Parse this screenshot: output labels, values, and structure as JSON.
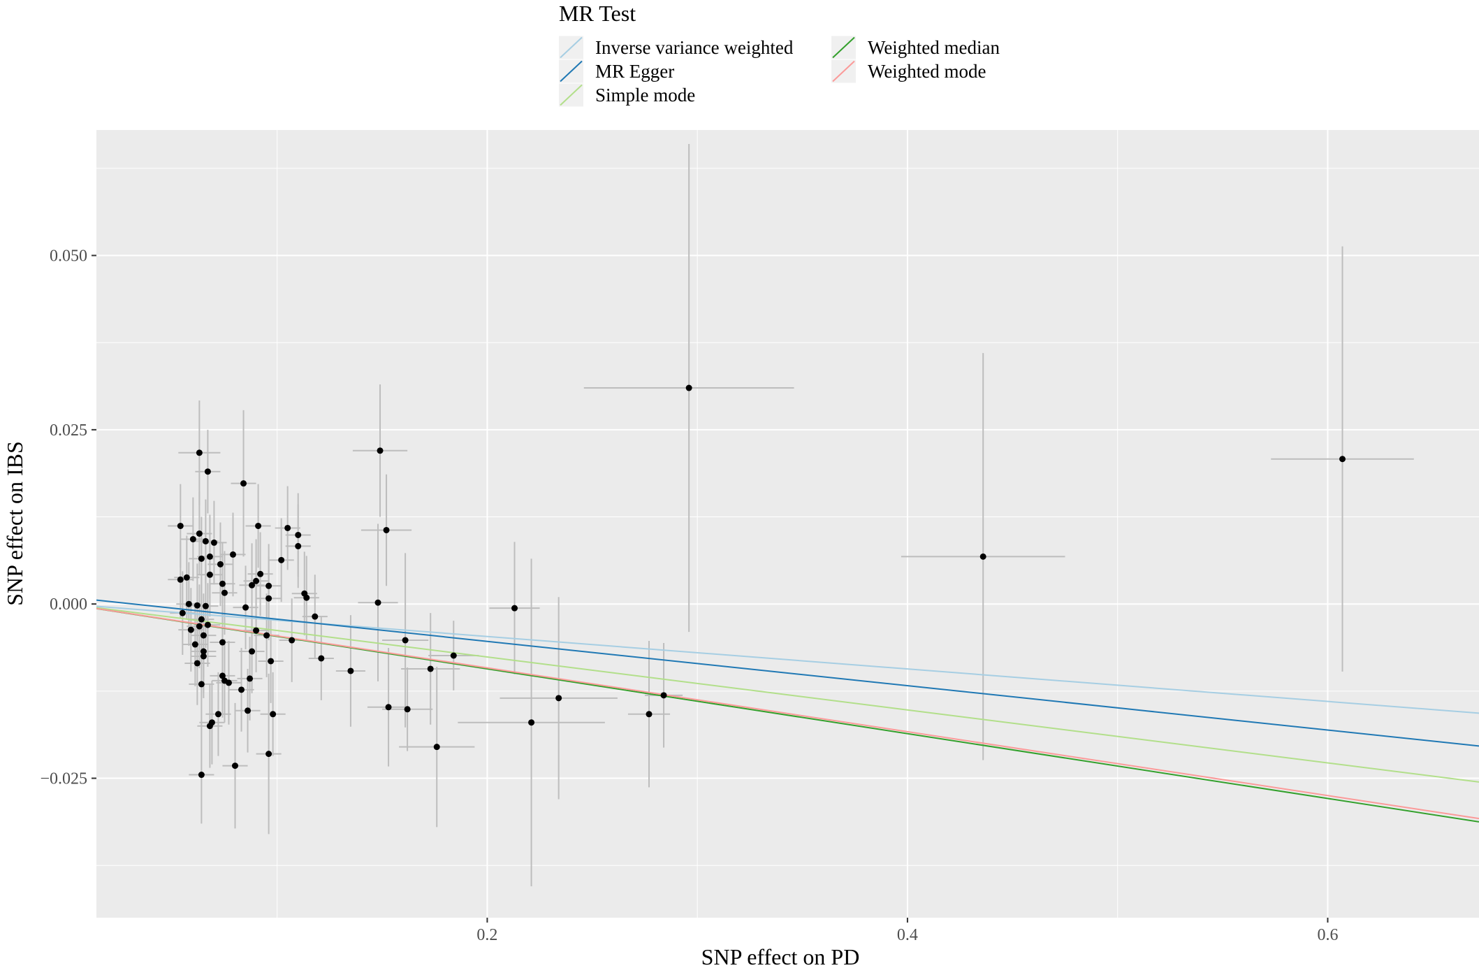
{
  "chart_data": {
    "type": "scatter",
    "title": "",
    "xlabel": "SNP effect on PD",
    "ylabel": "SNP effect on IBS",
    "xlim": [
      0.014,
      0.672
    ],
    "ylim": [
      -0.045,
      0.068
    ],
    "x_ticks": [
      0.2,
      0.4,
      0.6
    ],
    "x_tick_labels": [
      "0.2",
      "0.4",
      "0.6"
    ],
    "y_ticks": [
      -0.025,
      0.0,
      0.025,
      0.05
    ],
    "y_tick_labels": [
      "−0.025",
      "0.000",
      "0.025",
      "0.050"
    ],
    "grid": true,
    "legend": {
      "title": "MR Test",
      "position": "top",
      "entries": [
        {
          "name": "Inverse variance weighted",
          "color": "#a6cee3"
        },
        {
          "name": "MR Egger",
          "color": "#1f78b4"
        },
        {
          "name": "Simple mode",
          "color": "#b2df8a"
        },
        {
          "name": "Weighted median",
          "color": "#33a02c"
        },
        {
          "name": "Weighted mode",
          "color": "#fb9a99"
        }
      ]
    },
    "series": [
      {
        "name": "Inverse variance weighted",
        "intercept": 0.0,
        "slope": -0.0233,
        "color": "#a6cee3"
      },
      {
        "name": "MR Egger",
        "intercept": 0.001,
        "slope": -0.0318,
        "color": "#1f78b4"
      },
      {
        "name": "Simple mode",
        "intercept": 0.0,
        "slope": -0.038,
        "color": "#b2df8a"
      },
      {
        "name": "Weighted median",
        "intercept": 0.0,
        "slope": -0.0465,
        "color": "#33a02c"
      },
      {
        "name": "Weighted mode",
        "intercept": 0.0,
        "slope": -0.0458,
        "color": "#fb9a99"
      }
    ],
    "points": [
      {
        "x": 0.054,
        "y": 0.0112,
        "xe": 0.006,
        "ye": 0.006
      },
      {
        "x": 0.054,
        "y": 0.0035,
        "xe": 0.006,
        "ye": 0.0055
      },
      {
        "x": 0.055,
        "y": -0.0013,
        "xe": 0.006,
        "ye": 0.006
      },
      {
        "x": 0.057,
        "y": 0.0038,
        "xe": 0.006,
        "ye": 0.006
      },
      {
        "x": 0.058,
        "y": 0.0,
        "xe": 0.006,
        "ye": 0.006
      },
      {
        "x": 0.059,
        "y": -0.0037,
        "xe": 0.006,
        "ye": 0.006
      },
      {
        "x": 0.06,
        "y": 0.0093,
        "xe": 0.006,
        "ye": 0.006
      },
      {
        "x": 0.061,
        "y": -0.0058,
        "xe": 0.006,
        "ye": 0.006
      },
      {
        "x": 0.062,
        "y": -0.0085,
        "xe": 0.006,
        "ye": 0.006
      },
      {
        "x": 0.062,
        "y": -0.0002,
        "xe": 0.006,
        "ye": 0.006
      },
      {
        "x": 0.063,
        "y": 0.0217,
        "xe": 0.01,
        "ye": 0.0075
      },
      {
        "x": 0.063,
        "y": 0.0101,
        "xe": 0.006,
        "ye": 0.006
      },
      {
        "x": 0.063,
        "y": -0.0032,
        "xe": 0.006,
        "ye": 0.006
      },
      {
        "x": 0.064,
        "y": -0.0115,
        "xe": 0.006,
        "ye": 0.006
      },
      {
        "x": 0.064,
        "y": -0.0022,
        "xe": 0.006,
        "ye": 0.006
      },
      {
        "x": 0.064,
        "y": 0.0065,
        "xe": 0.006,
        "ye": 0.006
      },
      {
        "x": 0.064,
        "y": -0.0245,
        "xe": 0.006,
        "ye": 0.007
      },
      {
        "x": 0.065,
        "y": -0.0045,
        "xe": 0.006,
        "ye": 0.006
      },
      {
        "x": 0.065,
        "y": -0.0068,
        "xe": 0.006,
        "ye": 0.006
      },
      {
        "x": 0.065,
        "y": -0.0075,
        "xe": 0.006,
        "ye": 0.006
      },
      {
        "x": 0.066,
        "y": 0.009,
        "xe": 0.006,
        "ye": 0.006
      },
      {
        "x": 0.066,
        "y": -0.0003,
        "xe": 0.006,
        "ye": 0.006
      },
      {
        "x": 0.067,
        "y": 0.019,
        "xe": 0.006,
        "ye": 0.006
      },
      {
        "x": 0.067,
        "y": -0.003,
        "xe": 0.006,
        "ye": 0.006
      },
      {
        "x": 0.068,
        "y": 0.0068,
        "xe": 0.006,
        "ye": 0.006
      },
      {
        "x": 0.068,
        "y": 0.0042,
        "xe": 0.006,
        "ye": 0.006
      },
      {
        "x": 0.068,
        "y": -0.0175,
        "xe": 0.006,
        "ye": 0.006
      },
      {
        "x": 0.069,
        "y": -0.017,
        "xe": 0.006,
        "ye": 0.006
      },
      {
        "x": 0.07,
        "y": 0.0088,
        "xe": 0.006,
        "ye": 0.006
      },
      {
        "x": 0.072,
        "y": -0.0158,
        "xe": 0.006,
        "ye": 0.006
      },
      {
        "x": 0.073,
        "y": 0.0057,
        "xe": 0.006,
        "ye": 0.006
      },
      {
        "x": 0.074,
        "y": 0.0029,
        "xe": 0.006,
        "ye": 0.006
      },
      {
        "x": 0.074,
        "y": -0.0055,
        "xe": 0.006,
        "ye": 0.006
      },
      {
        "x": 0.074,
        "y": -0.0103,
        "xe": 0.006,
        "ye": 0.006
      },
      {
        "x": 0.075,
        "y": 0.0016,
        "xe": 0.006,
        "ye": 0.006
      },
      {
        "x": 0.075,
        "y": -0.011,
        "xe": 0.006,
        "ye": 0.006
      },
      {
        "x": 0.077,
        "y": -0.0113,
        "xe": 0.006,
        "ye": 0.006
      },
      {
        "x": 0.079,
        "y": 0.0071,
        "xe": 0.006,
        "ye": 0.006
      },
      {
        "x": 0.08,
        "y": -0.0232,
        "xe": 0.006,
        "ye": 0.009
      },
      {
        "x": 0.083,
        "y": -0.0123,
        "xe": 0.006,
        "ye": 0.006
      },
      {
        "x": 0.084,
        "y": 0.0173,
        "xe": 0.006,
        "ye": 0.0105
      },
      {
        "x": 0.085,
        "y": -0.0005,
        "xe": 0.006,
        "ye": 0.006
      },
      {
        "x": 0.086,
        "y": -0.0153,
        "xe": 0.006,
        "ye": 0.006
      },
      {
        "x": 0.087,
        "y": -0.0107,
        "xe": 0.006,
        "ye": 0.006
      },
      {
        "x": 0.088,
        "y": -0.0068,
        "xe": 0.006,
        "ye": 0.006
      },
      {
        "x": 0.088,
        "y": 0.0027,
        "xe": 0.006,
        "ye": 0.006
      },
      {
        "x": 0.09,
        "y": 0.0033,
        "xe": 0.006,
        "ye": 0.006
      },
      {
        "x": 0.09,
        "y": -0.0038,
        "xe": 0.006,
        "ye": 0.006
      },
      {
        "x": 0.091,
        "y": 0.0112,
        "xe": 0.006,
        "ye": 0.006
      },
      {
        "x": 0.092,
        "y": 0.0043,
        "xe": 0.006,
        "ye": 0.006
      },
      {
        "x": 0.095,
        "y": -0.0045,
        "xe": 0.006,
        "ye": 0.006
      },
      {
        "x": 0.096,
        "y": 0.0008,
        "xe": 0.006,
        "ye": 0.006
      },
      {
        "x": 0.096,
        "y": 0.0026,
        "xe": 0.006,
        "ye": 0.006
      },
      {
        "x": 0.096,
        "y": -0.0215,
        "xe": 0.006,
        "ye": 0.0115
      },
      {
        "x": 0.097,
        "y": -0.0082,
        "xe": 0.006,
        "ye": 0.006
      },
      {
        "x": 0.098,
        "y": -0.0158,
        "xe": 0.006,
        "ye": 0.006
      },
      {
        "x": 0.102,
        "y": 0.0063,
        "xe": 0.006,
        "ye": 0.006
      },
      {
        "x": 0.105,
        "y": 0.0109,
        "xe": 0.006,
        "ye": 0.006
      },
      {
        "x": 0.107,
        "y": -0.0052,
        "xe": 0.006,
        "ye": 0.006
      },
      {
        "x": 0.11,
        "y": 0.0083,
        "xe": 0.006,
        "ye": 0.006
      },
      {
        "x": 0.11,
        "y": 0.0099,
        "xe": 0.006,
        "ye": 0.006
      },
      {
        "x": 0.113,
        "y": 0.0015,
        "xe": 0.006,
        "ye": 0.006
      },
      {
        "x": 0.114,
        "y": 0.0009,
        "xe": 0.006,
        "ye": 0.006
      },
      {
        "x": 0.118,
        "y": -0.0018,
        "xe": 0.006,
        "ye": 0.006
      },
      {
        "x": 0.121,
        "y": -0.0078,
        "xe": 0.006,
        "ye": 0.006
      },
      {
        "x": 0.135,
        "y": -0.0096,
        "xe": 0.007,
        "ye": 0.008
      },
      {
        "x": 0.148,
        "y": 0.0002,
        "xe": 0.0095,
        "ye": 0.0113
      },
      {
        "x": 0.149,
        "y": 0.022,
        "xe": 0.013,
        "ye": 0.0095
      },
      {
        "x": 0.152,
        "y": 0.0106,
        "xe": 0.012,
        "ye": 0.008
      },
      {
        "x": 0.153,
        "y": -0.0148,
        "xe": 0.01,
        "ye": 0.0085
      },
      {
        "x": 0.161,
        "y": -0.0052,
        "xe": 0.011,
        "ye": 0.0125
      },
      {
        "x": 0.162,
        "y": -0.0151,
        "xe": 0.012,
        "ye": 0.006
      },
      {
        "x": 0.173,
        "y": -0.0093,
        "xe": 0.014,
        "ye": 0.008
      },
      {
        "x": 0.176,
        "y": -0.0205,
        "xe": 0.018,
        "ye": 0.0115
      },
      {
        "x": 0.184,
        "y": -0.0074,
        "xe": 0.012,
        "ye": 0.005
      },
      {
        "x": 0.213,
        "y": -0.0006,
        "xe": 0.012,
        "ye": 0.0095
      },
      {
        "x": 0.221,
        "y": -0.017,
        "xe": 0.035,
        "ye": 0.0235
      },
      {
        "x": 0.234,
        "y": -0.0135,
        "xe": 0.028,
        "ye": 0.0145
      },
      {
        "x": 0.277,
        "y": -0.0158,
        "xe": 0.01,
        "ye": 0.0105
      },
      {
        "x": 0.284,
        "y": -0.0131,
        "xe": 0.009,
        "ye": 0.0075
      },
      {
        "x": 0.296,
        "y": 0.031,
        "xe": 0.05,
        "ye": 0.035
      },
      {
        "x": 0.436,
        "y": 0.0068,
        "xe": 0.039,
        "ye": 0.0292
      },
      {
        "x": 0.607,
        "y": 0.0208,
        "xe": 0.034,
        "ye": 0.0305
      }
    ]
  }
}
